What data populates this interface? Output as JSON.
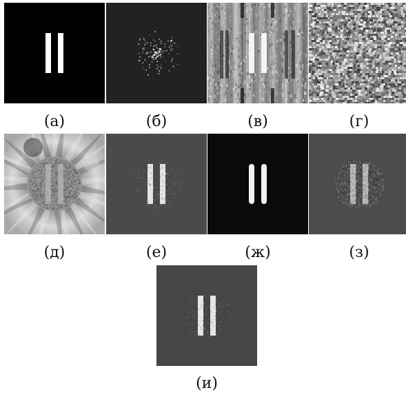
{
  "figure": {
    "panels": [
      {
        "id": "a",
        "caption": "(а)"
      },
      {
        "id": "b",
        "caption": "(б)"
      },
      {
        "id": "v",
        "caption": "(в)"
      },
      {
        "id": "g",
        "caption": "(г)"
      },
      {
        "id": "d",
        "caption": "(д)"
      },
      {
        "id": "e",
        "caption": "(е)"
      },
      {
        "id": "zh",
        "caption": "(ж)"
      },
      {
        "id": "z",
        "caption": "(з)"
      },
      {
        "id": "i",
        "caption": "(и)"
      }
    ]
  }
}
